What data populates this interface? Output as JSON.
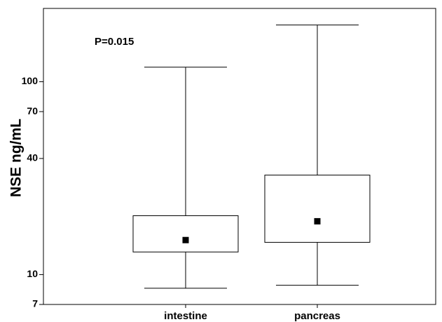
{
  "chart_data": {
    "type": "box",
    "annotation": "P=0.015",
    "y_label": "NSE ng/mL",
    "categories": [
      "intestine",
      "pancreas"
    ],
    "min": [
      8.5,
      8.8
    ],
    "q1": [
      13.1,
      14.7
    ],
    "median": [
      15.1,
      18.9
    ],
    "q3": [
      20.2,
      32.8
    ],
    "max": [
      119,
      197
    ],
    "y_log": true,
    "ylim": [
      7,
      240
    ],
    "yticks": [
      7,
      10,
      40,
      70,
      100
    ]
  }
}
